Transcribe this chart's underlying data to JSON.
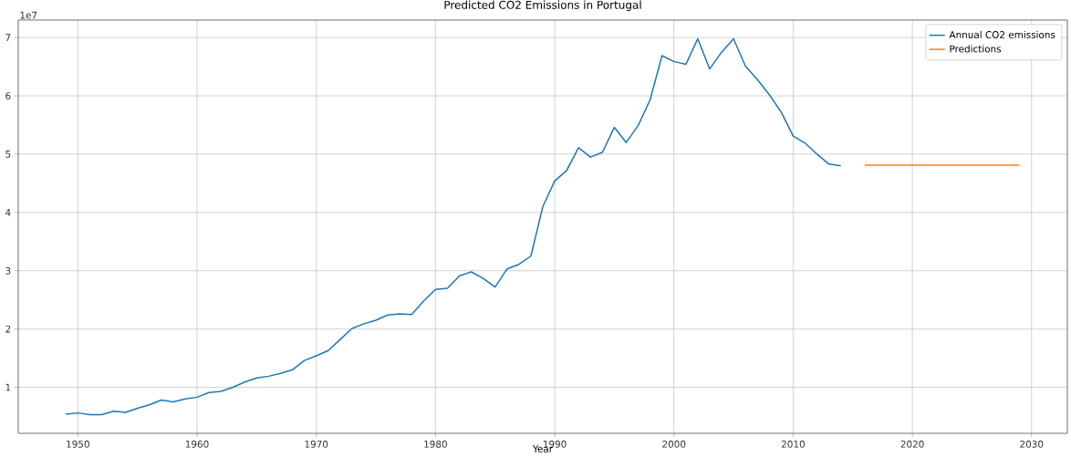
{
  "chart_data": {
    "type": "line",
    "title": "Predicted CO2 Emissions in Portugal",
    "xlabel": "Year",
    "annotations": [
      "1e7"
    ],
    "series": [
      {
        "name": "Annual CO2 emissions",
        "color": "#1f77b4",
        "x": [
          1949,
          1950,
          1951,
          1952,
          1953,
          1954,
          1955,
          1956,
          1957,
          1958,
          1959,
          1960,
          1961,
          1962,
          1963,
          1964,
          1965,
          1966,
          1967,
          1968,
          1969,
          1970,
          1971,
          1972,
          1973,
          1974,
          1975,
          1976,
          1977,
          1978,
          1979,
          1980,
          1981,
          1982,
          1983,
          1984,
          1985,
          1986,
          1987,
          1988,
          1989,
          1990,
          1991,
          1992,
          1993,
          1994,
          1995,
          1996,
          1997,
          1998,
          1999,
          2000,
          2001,
          2002,
          2003,
          2004,
          2005,
          2006,
          2007,
          2008,
          2009,
          2010,
          2011,
          2012,
          2013,
          2014
        ],
        "values": [
          0.54,
          0.56,
          0.53,
          0.53,
          0.59,
          0.57,
          0.64,
          0.7,
          0.78,
          0.75,
          0.8,
          0.83,
          0.91,
          0.93,
          1.0,
          1.09,
          1.16,
          1.19,
          1.24,
          1.3,
          1.46,
          1.54,
          1.63,
          1.82,
          2.01,
          2.09,
          2.15,
          2.24,
          2.26,
          2.25,
          2.48,
          2.68,
          2.7,
          2.91,
          2.98,
          2.87,
          2.72,
          3.03,
          3.11,
          3.25,
          4.1,
          4.54,
          4.72,
          5.11,
          4.95,
          5.03,
          5.46,
          5.2,
          5.49,
          5.93,
          6.69,
          6.59,
          6.54,
          6.98,
          6.46,
          6.75,
          6.98,
          6.51,
          6.28,
          6.02,
          5.72,
          5.31,
          5.19,
          5.0,
          4.83,
          4.8
        ]
      },
      {
        "name": "Predictions",
        "color": "#ff7f0e",
        "x": [
          2016,
          2029
        ],
        "values": [
          4.81,
          4.81
        ]
      }
    ],
    "xlim": [
      1945,
      2033
    ],
    "ylim": [
      0.21,
      7.3
    ],
    "xticks": [
      1950,
      1960,
      1970,
      1980,
      1990,
      2000,
      2010,
      2020,
      2030
    ],
    "yticks": [
      1,
      2,
      3,
      4,
      5,
      6,
      7
    ],
    "grid": true,
    "legend": "top right"
  }
}
